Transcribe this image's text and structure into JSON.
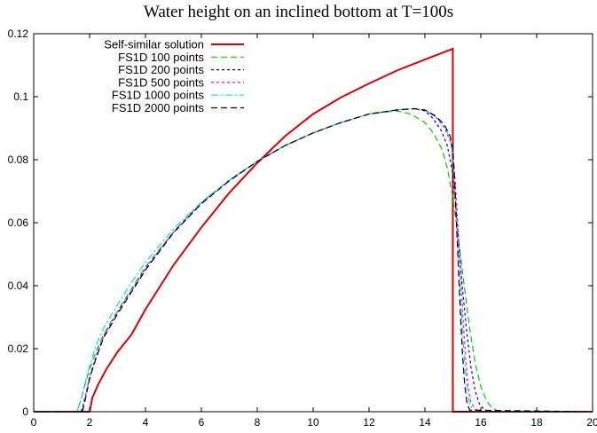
{
  "chart_data": {
    "type": "line",
    "title": "Water height on an inclined bottom at T=100s",
    "xlabel": "",
    "ylabel": "",
    "xlim": [
      0,
      20
    ],
    "ylim": [
      0,
      0.12
    ],
    "xticks": [
      0,
      2,
      4,
      6,
      8,
      10,
      12,
      14,
      16,
      18,
      20
    ],
    "xtick_labels": [
      "0",
      "2",
      "4",
      "6",
      "8",
      "10",
      "12",
      "14",
      "16",
      "18",
      "20"
    ],
    "yticks": [
      0,
      0.02,
      0.04,
      0.06,
      0.08,
      0.1,
      0.12
    ],
    "ytick_labels": [
      "0",
      "0.02",
      "0.04",
      "0.06",
      "0.08",
      "0.1",
      "0.12"
    ],
    "grid": false,
    "legend_position": "top-left",
    "series": [
      {
        "name": "Self-similar solution",
        "color": "#dd0000",
        "style": "solid",
        "x": [
          0,
          1.97,
          2.0,
          2.1,
          2.3,
          2.6,
          3.0,
          3.5,
          4.0,
          5.0,
          6.0,
          7.0,
          8.0,
          9.0,
          10.0,
          11.0,
          12.0,
          13.0,
          14.0,
          15.0,
          15.0,
          20
        ],
        "y": [
          0,
          0,
          0.0,
          0.0045,
          0.0085,
          0.0135,
          0.019,
          0.0245,
          0.0325,
          0.0465,
          0.0585,
          0.0695,
          0.079,
          0.0875,
          0.0945,
          0.0998,
          0.1042,
          0.1083,
          0.1118,
          0.1152,
          0,
          0
        ]
      },
      {
        "name": "FS1D   100 points",
        "color": "#00cc00",
        "style": "dashed",
        "x": [
          0,
          1.55,
          1.7,
          1.85,
          2.0,
          2.25,
          2.5,
          3.0,
          3.5,
          4.0,
          5.0,
          6.0,
          7.0,
          8.0,
          9.0,
          10.0,
          11.0,
          12.0,
          13.0,
          13.5,
          14.0,
          14.3,
          14.6,
          14.8,
          15.0,
          15.2,
          15.4,
          15.6,
          15.8,
          16.0,
          16.2,
          16.4,
          16.6,
          16.8,
          17.0,
          20
        ],
        "y": [
          0,
          0,
          0.004,
          0.009,
          0.0135,
          0.0195,
          0.0245,
          0.032,
          0.039,
          0.046,
          0.057,
          0.0665,
          0.0735,
          0.0795,
          0.0845,
          0.0885,
          0.0918,
          0.0945,
          0.0955,
          0.0945,
          0.0918,
          0.0885,
          0.0835,
          0.0775,
          0.068,
          0.055,
          0.0405,
          0.0265,
          0.0155,
          0.008,
          0.0035,
          0.0012,
          0.0003,
          0.0001,
          0,
          0
        ]
      },
      {
        "name": "FS1D   200 points",
        "color": "#0000cc",
        "style": "dotted",
        "x": [
          0,
          1.7,
          1.85,
          2.0,
          2.25,
          2.5,
          3.0,
          3.5,
          4.0,
          5.0,
          6.0,
          7.0,
          8.0,
          9.0,
          10.0,
          11.0,
          12.0,
          13.0,
          13.6,
          14.0,
          14.3,
          14.6,
          14.8,
          15.0,
          15.1,
          15.2,
          15.35,
          15.5,
          15.65,
          15.8,
          15.95,
          16.1,
          16.3,
          16.5,
          20
        ],
        "y": [
          0,
          0,
          0.005,
          0.011,
          0.018,
          0.024,
          0.0315,
          0.0385,
          0.0455,
          0.057,
          0.0662,
          0.0735,
          0.0795,
          0.0845,
          0.0885,
          0.0918,
          0.0945,
          0.0958,
          0.0962,
          0.0955,
          0.093,
          0.089,
          0.0845,
          0.0755,
          0.066,
          0.054,
          0.0385,
          0.025,
          0.014,
          0.0065,
          0.0025,
          0.0008,
          0.0002,
          0,
          0
        ]
      },
      {
        "name": "FS1D   500 points",
        "color": "#ff00ff",
        "style": "dotted",
        "x": [
          0,
          1.72,
          1.85,
          2.0,
          2.25,
          2.5,
          3.0,
          3.5,
          4.0,
          5.0,
          6.0,
          7.0,
          8.0,
          9.0,
          10.0,
          11.0,
          12.0,
          13.0,
          13.6,
          14.0,
          14.4,
          14.7,
          14.9,
          15.0,
          15.08,
          15.15,
          15.25,
          15.35,
          15.45,
          15.55,
          15.65,
          15.8,
          16.0,
          20
        ],
        "y": [
          0,
          0,
          0.005,
          0.011,
          0.018,
          0.024,
          0.0315,
          0.0385,
          0.0455,
          0.057,
          0.0662,
          0.0735,
          0.0795,
          0.0845,
          0.0885,
          0.0918,
          0.0945,
          0.0958,
          0.0962,
          0.0958,
          0.0935,
          0.09,
          0.086,
          0.0815,
          0.074,
          0.064,
          0.048,
          0.032,
          0.018,
          0.008,
          0.003,
          0.0008,
          0,
          0
        ]
      },
      {
        "name": "FS1D 1000 points",
        "color": "#00dddd",
        "style": "dash-dot",
        "x": [
          0,
          1.55,
          1.7,
          1.85,
          2.0,
          2.25,
          2.5,
          3.0,
          3.5,
          4.0,
          5.0,
          6.0,
          7.0,
          8.0,
          9.0,
          10.0,
          11.0,
          12.0,
          13.0,
          13.6,
          14.0,
          14.4,
          14.7,
          14.9,
          15.0,
          15.05,
          15.12,
          15.2,
          15.3,
          15.4,
          15.5,
          15.6,
          15.75,
          20
        ],
        "y": [
          0,
          0,
          0.004,
          0.0095,
          0.0145,
          0.0215,
          0.0265,
          0.034,
          0.041,
          0.0475,
          0.058,
          0.0665,
          0.0735,
          0.0795,
          0.0845,
          0.0885,
          0.0918,
          0.0945,
          0.0958,
          0.0962,
          0.0958,
          0.0935,
          0.0905,
          0.0865,
          0.082,
          0.0735,
          0.062,
          0.048,
          0.032,
          0.018,
          0.008,
          0.0025,
          0,
          0
        ]
      },
      {
        "name": "FS1D 2000 points",
        "color": "#000000",
        "style": "dashed",
        "x": [
          0,
          1.74,
          1.85,
          2.0,
          2.25,
          2.5,
          3.0,
          3.5,
          4.0,
          5.0,
          6.0,
          7.0,
          8.0,
          9.0,
          10.0,
          11.0,
          12.0,
          13.0,
          13.6,
          14.0,
          14.4,
          14.7,
          14.9,
          15.0,
          15.05,
          15.1,
          15.18,
          15.26,
          15.34,
          15.42,
          15.5,
          15.6,
          20
        ],
        "y": [
          0,
          0,
          0.004,
          0.0105,
          0.0175,
          0.0235,
          0.031,
          0.038,
          0.045,
          0.0568,
          0.066,
          0.0733,
          0.0794,
          0.0845,
          0.0885,
          0.0918,
          0.0945,
          0.0958,
          0.0962,
          0.0958,
          0.0938,
          0.091,
          0.0875,
          0.0835,
          0.076,
          0.066,
          0.049,
          0.033,
          0.019,
          0.009,
          0.003,
          0.0005,
          0
        ]
      }
    ]
  }
}
